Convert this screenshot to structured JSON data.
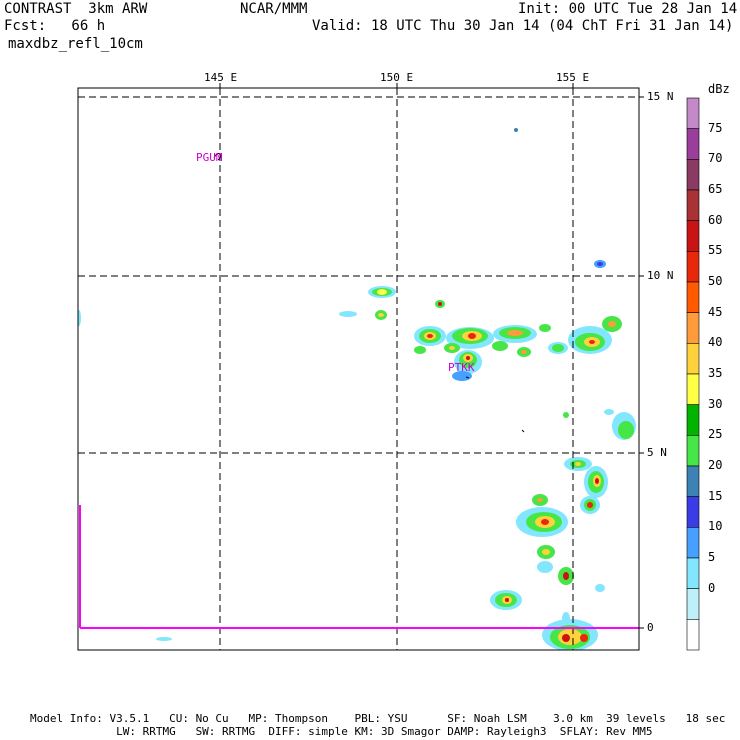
{
  "header": {
    "line1_left": "CONTRAST  3km ARW",
    "line1_center": "NCAR/MMM",
    "line1_right": "Init: 00 UTC Tue 28 Jan 14",
    "line2_left": "Fcst:   66 h",
    "line2_right": "Valid: 18 UTC Thu 30 Jan 14 (04 ChT Fri 31 Jan 14)",
    "field": "maxdbz_refl_10cm"
  },
  "map": {
    "lon_labels": [
      "145 E",
      "150 E",
      "155 E"
    ],
    "lat_labels": [
      "15 N",
      "10 N",
      "5 N",
      "0"
    ],
    "stations": [
      "PGUM",
      "PTKK"
    ],
    "colors": {
      "frame": "#000000",
      "grid": "#000000",
      "boundary": "#ff00ff",
      "station": "#cc00cc"
    }
  },
  "colorbar": {
    "unit": "dBz",
    "levels": [
      "75",
      "70",
      "65",
      "60",
      "55",
      "50",
      "45",
      "40",
      "35",
      "30",
      "25",
      "20",
      "15",
      "10",
      "5",
      "0"
    ],
    "colors": [
      "#c389c9",
      "#9b3d9b",
      "#8b3a63",
      "#a83236",
      "#c81414",
      "#e8280a",
      "#ff5a00",
      "#ff9b3a",
      "#ffd23c",
      "#ffff46",
      "#00b400",
      "#46e646",
      "#3c82b4",
      "#3c3ce6",
      "#46a0ff",
      "#82e6ff",
      "#bef0fa",
      "#ffffff"
    ]
  },
  "footer": {
    "line1": "Model Info: V3.5.1   CU: No Cu   MP: Thompson    PBL: YSU      SF: Noah LSM    3.0 km  39 levels   18 sec",
    "line2": "             LW: RRTMG   SW: RRTMG  DIFF: simple KM: 3D Smagor DAMP: Rayleigh3  SFLAY: Rev MM5"
  }
}
